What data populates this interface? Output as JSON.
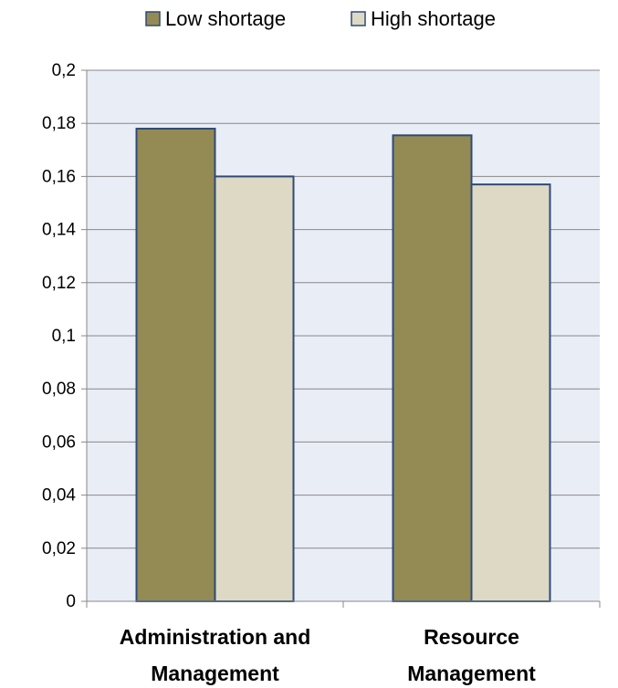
{
  "chart_data": {
    "type": "bar",
    "title": "",
    "xlabel": "",
    "ylabel": "",
    "categories": [
      [
        "Administration and",
        "Management"
      ],
      [
        "Resource",
        "Management"
      ]
    ],
    "series": [
      {
        "name": "Low shortage",
        "values": [
          0.178,
          0.1755
        ],
        "color": "#948b54"
      },
      {
        "name": "High shortage",
        "values": [
          0.16,
          0.157
        ],
        "color": "#ddd9c4"
      }
    ],
    "ylim": [
      0,
      0.2
    ],
    "yticks": [
      0,
      0.02,
      0.04,
      0.06,
      0.08,
      0.1,
      0.12,
      0.14,
      0.16,
      0.18,
      0.2
    ],
    "ytick_labels": [
      "0",
      "0,02",
      "0,04",
      "0,06",
      "0,08",
      "0,1",
      "0,12",
      "0,14",
      "0,16",
      "0,18",
      "0,2"
    ],
    "grid": true,
    "legend": "top-center",
    "plot_background": "#e9edf6",
    "bar_edge_color": "#2e4a7a",
    "gridline_color": "#888888"
  }
}
